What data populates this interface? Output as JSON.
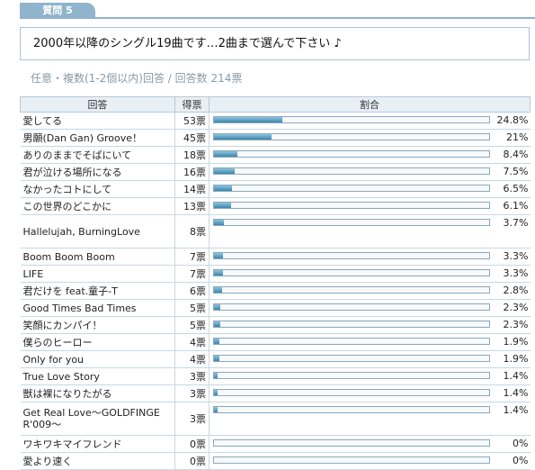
{
  "tab_label": "質問 5",
  "question": "2000年以降のシングル19曲です…2曲まで選んで下さい ♪",
  "meta": "任意・複数(1-2個以内)回答 / 回答数  214票",
  "headers": {
    "answer": "回答",
    "votes": "得票",
    "ratio": "割合"
  },
  "rows": [
    {
      "answer": "愛してる",
      "votes": "53票",
      "pct": "24.8%",
      "ratio": 0.248
    },
    {
      "answer": "男願(Dan Gan) Groove！",
      "votes": "45票",
      "pct": "21%",
      "ratio": 0.21
    },
    {
      "answer": "ありのままでそばにいて",
      "votes": "18票",
      "pct": "8.4%",
      "ratio": 0.084
    },
    {
      "answer": "君が泣ける場所になる",
      "votes": "16票",
      "pct": "7.5%",
      "ratio": 0.075
    },
    {
      "answer": "なかったコトにして",
      "votes": "14票",
      "pct": "6.5%",
      "ratio": 0.065
    },
    {
      "answer": "この世界のどこかに",
      "votes": "13票",
      "pct": "6.1%",
      "ratio": 0.061
    },
    {
      "answer": "Hallelujah, BurningLove",
      "votes": "8票",
      "pct": "3.7%",
      "ratio": 0.037
    },
    {
      "answer": "Boom Boom Boom",
      "votes": "7票",
      "pct": "3.3%",
      "ratio": 0.033
    },
    {
      "answer": "LIFE",
      "votes": "7票",
      "pct": "3.3%",
      "ratio": 0.033
    },
    {
      "answer": "君だけを feat.童子-T",
      "votes": "6票",
      "pct": "2.8%",
      "ratio": 0.028
    },
    {
      "answer": "Good Times Bad Times",
      "votes": "5票",
      "pct": "2.3%",
      "ratio": 0.023
    },
    {
      "answer": "笑顔にカンパイ！",
      "votes": "5票",
      "pct": "2.3%",
      "ratio": 0.023
    },
    {
      "answer": "僕らのヒーロー",
      "votes": "4票",
      "pct": "1.9%",
      "ratio": 0.019
    },
    {
      "answer": "Only for you",
      "votes": "4票",
      "pct": "1.9%",
      "ratio": 0.019
    },
    {
      "answer": "True Love Story",
      "votes": "3票",
      "pct": "1.4%",
      "ratio": 0.014
    },
    {
      "answer": "獣は裸になりたがる",
      "votes": "3票",
      "pct": "1.4%",
      "ratio": 0.014
    },
    {
      "answer": "Get Real Love～GOLDFINGER'009～",
      "votes": "3票",
      "pct": "1.4%",
      "ratio": 0.014
    },
    {
      "answer": "ワキワキマイフレンド",
      "votes": "0票",
      "pct": "0%",
      "ratio": 0
    },
    {
      "answer": "愛より速く",
      "votes": "0票",
      "pct": "0%",
      "ratio": 0
    }
  ],
  "colors": {
    "tab": "#8fb4cc",
    "bar_light": "#8fc3dc",
    "bar_dark": "#3a86ad",
    "border": "#a9c3d6"
  }
}
